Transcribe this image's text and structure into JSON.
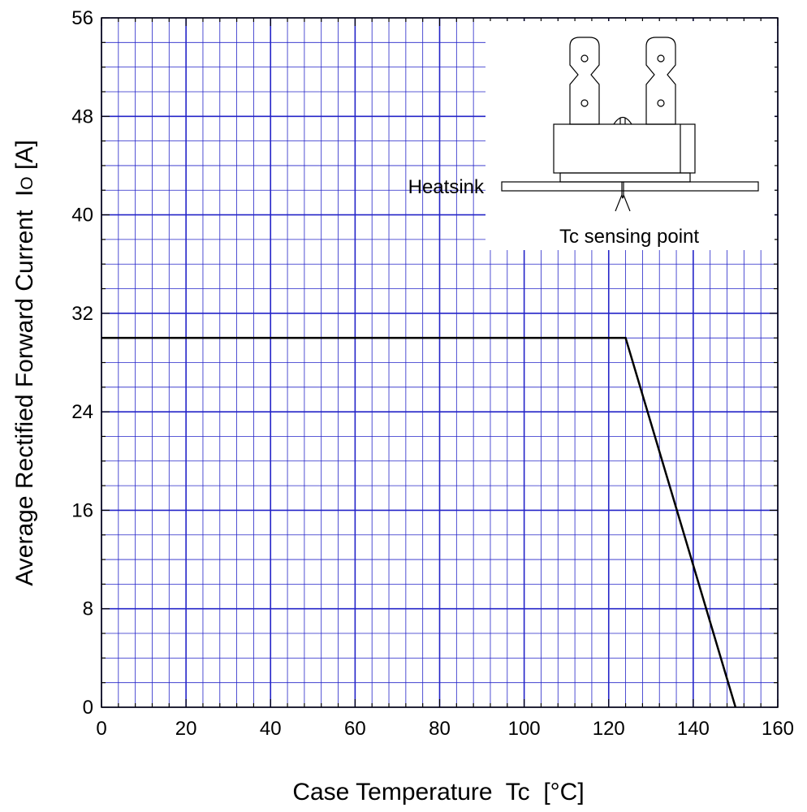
{
  "chart_data": {
    "type": "line",
    "xlabel": "Case Temperature  Tc  [°C]",
    "ylabel": "Average Rectified Forward Current  IO [A]",
    "ylabel_main": "Average Rectified Forward Current  I",
    "ylabel_sub": "O",
    "ylabel_tail": " [A]",
    "xlim": [
      0,
      160
    ],
    "ylim": [
      0,
      56
    ],
    "x_ticks": [
      0,
      20,
      40,
      60,
      80,
      100,
      120,
      140,
      160
    ],
    "y_ticks": [
      0,
      8,
      16,
      24,
      32,
      40,
      48,
      56
    ],
    "x_minor_step": 4,
    "y_minor_step": 2,
    "grid": true,
    "grid_color": "#2424c8",
    "line_color": "#000000",
    "series": [
      {
        "x": [
          0,
          124,
          150
        ],
        "y": [
          30,
          30,
          0
        ]
      }
    ],
    "annotations": {
      "heatsink": "Heatsink",
      "sensing_point": "Tc sensing point"
    }
  }
}
